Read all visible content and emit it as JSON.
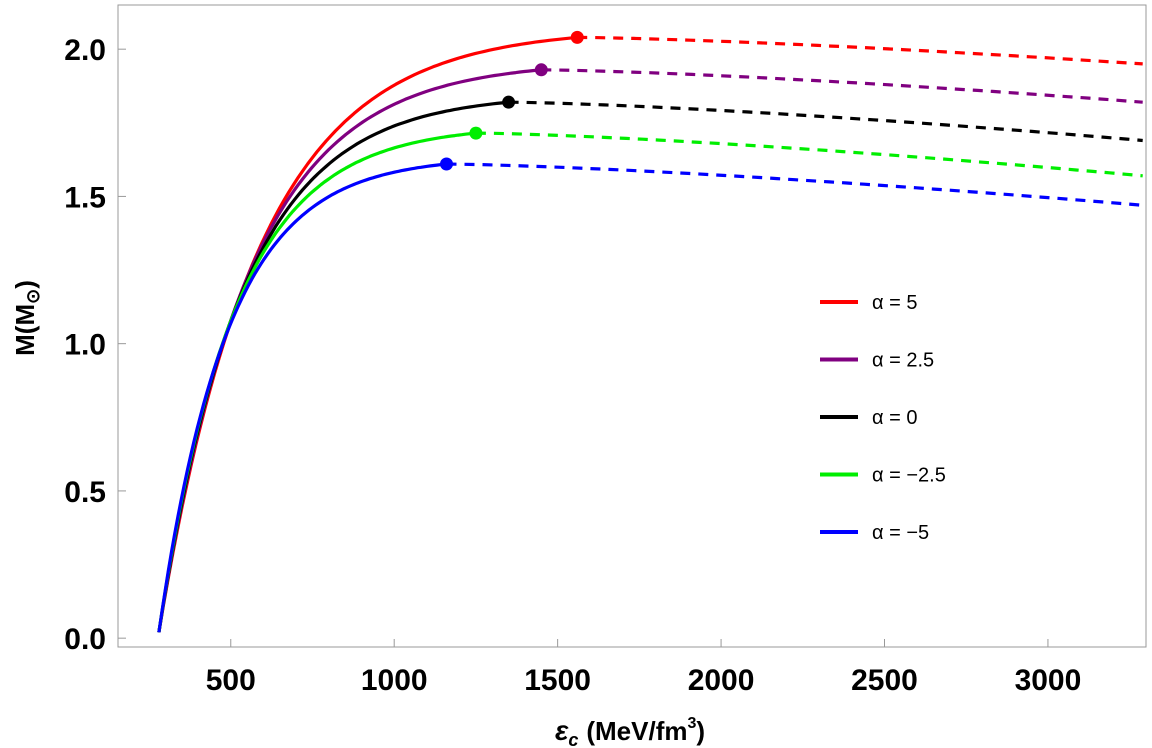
{
  "chart_data": {
    "type": "line",
    "title": "",
    "xlabel_symbol": "ε",
    "xlabel_sub": "c",
    "xlabel_unit": "(MeV/fm",
    "xlabel_sup": "3",
    "xlabel_close": ")",
    "ylabel_main": "M(M",
    "ylabel_sub": "⊙",
    "ylabel_close": ")",
    "xlim": [
      155,
      3300
    ],
    "ylim": [
      -0.03,
      2.15
    ],
    "x_ticks": [
      500,
      1000,
      1500,
      2000,
      2500,
      3000
    ],
    "x_tick_labels": [
      "500",
      "1000",
      "1500",
      "2000",
      "2500",
      "3000"
    ],
    "y_ticks": [
      0.0,
      0.5,
      1.0,
      1.5,
      2.0
    ],
    "y_tick_labels": [
      "0.0",
      "0.5",
      "1.0",
      "1.5",
      "2.0"
    ],
    "legend_position": "right",
    "series": [
      {
        "name": "α = 5",
        "color": "#ff0000",
        "max_x": 1560,
        "max_y": 2.04,
        "end_y": 1.95
      },
      {
        "name": "α = 2.5",
        "color": "#800080",
        "max_x": 1450,
        "max_y": 1.93,
        "end_y": 1.82
      },
      {
        "name": "α = 0",
        "color": "#000000",
        "max_x": 1350,
        "max_y": 1.82,
        "end_y": 1.69
      },
      {
        "name": "α = −2.5",
        "color": "#00ee00",
        "max_x": 1250,
        "max_y": 1.715,
        "end_y": 1.57
      },
      {
        "name": "α = −5",
        "color": "#0000ff",
        "max_x": 1160,
        "max_y": 1.61,
        "end_y": 1.47
      }
    ],
    "start_x": 280,
    "start_y": 0.02,
    "end_x": 3290
  }
}
